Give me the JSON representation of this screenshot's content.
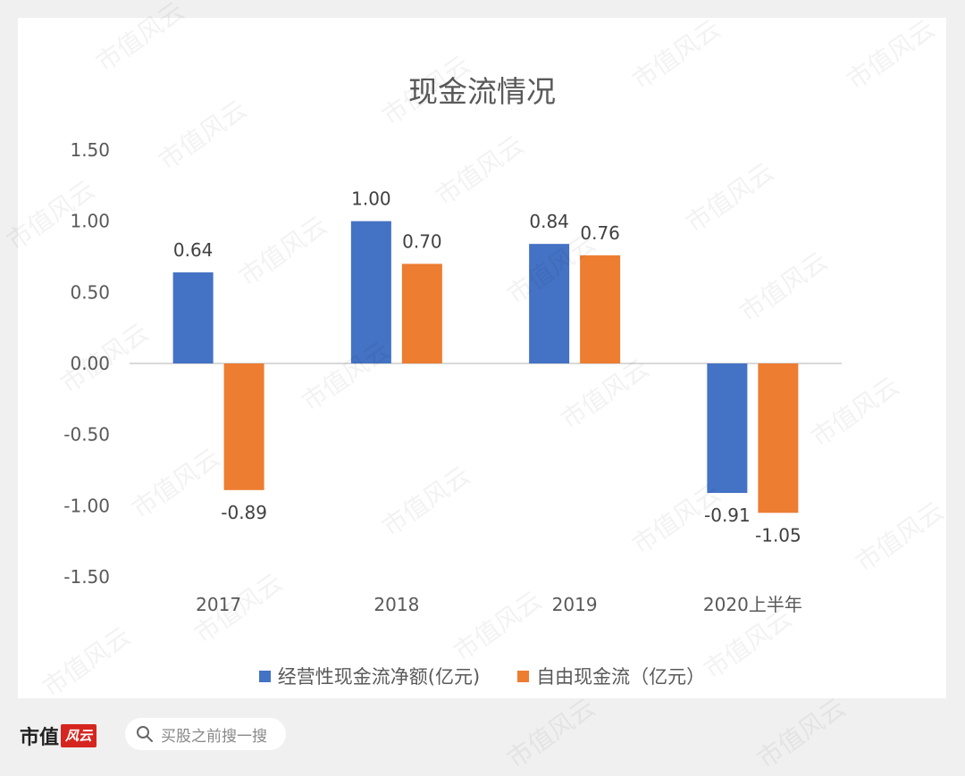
{
  "chart_data": {
    "type": "bar",
    "title": "现金流情况",
    "categories": [
      "2017",
      "2018",
      "2019",
      "2020上半年"
    ],
    "series": [
      {
        "name": "经营性现金流净额(亿元)",
        "color": "#4472c4",
        "values": [
          0.64,
          1.0,
          0.84,
          -0.91
        ]
      },
      {
        "name": "自由现金流（亿元）",
        "color": "#ed7d31",
        "values": [
          -0.89,
          0.7,
          0.76,
          -1.05
        ]
      }
    ],
    "data_labels": [
      [
        "0.64",
        "1.00",
        "0.84",
        "-0.91"
      ],
      [
        "-0.89",
        "0.70",
        "0.76",
        "-1.05"
      ]
    ],
    "ylim": [
      -1.5,
      1.5
    ],
    "yticks": [
      "1.50",
      "1.00",
      "0.50",
      "0.00",
      "-0.50",
      "-1.00",
      "-1.50"
    ],
    "ytick_values": [
      1.5,
      1.0,
      0.5,
      0.0,
      -0.5,
      -1.0,
      -1.5
    ],
    "legend_position": "bottom",
    "grid": false
  },
  "footer": {
    "brand_text": "市值",
    "brand_logo_text": "风云",
    "search_placeholder": "买股之前搜一搜"
  },
  "watermark_text": "市值风云"
}
